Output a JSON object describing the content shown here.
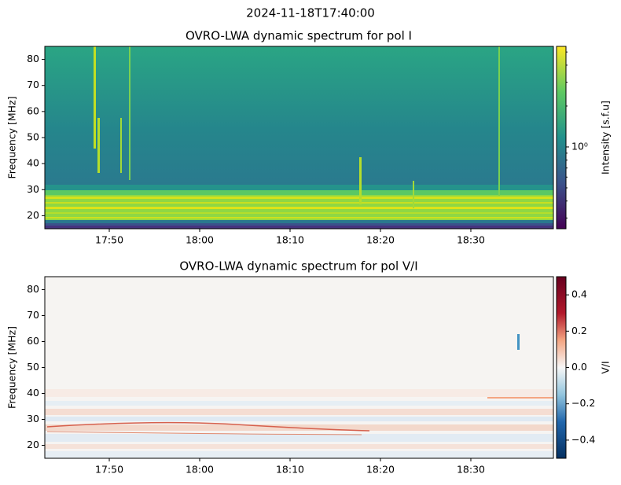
{
  "title": "2024-11-18T17:40:00",
  "chart_data": [
    {
      "type": "heatmap",
      "title": "OVRO-LWA dynamic spectrum for pol I",
      "ylabel": "Frequency [MHz]",
      "xlim": [
        "17:42:52",
        "18:39:08"
      ],
      "xticks": [
        "17:50",
        "18:00",
        "18:10",
        "18:20",
        "18:30"
      ],
      "ylim": [
        15,
        85
      ],
      "yticks": [
        20,
        30,
        40,
        50,
        60,
        70,
        80
      ],
      "colormap": "viridis",
      "cbar_label": "Intensity [s.f.u]",
      "cbar_scale": "log",
      "clim": [
        0.25,
        5.5
      ],
      "cbar_ticks": [
        {
          "value": 1,
          "label": "10⁰"
        }
      ],
      "cbar_minor_ticks": [
        0.3,
        0.4,
        0.5,
        0.6,
        0.7,
        0.8,
        0.9,
        2,
        3,
        4,
        5
      ]
    },
    {
      "type": "heatmap",
      "title": "OVRO-LWA dynamic spectrum for pol V/I",
      "ylabel": "Frequency [MHz]",
      "xlim": [
        "17:42:52",
        "18:39:08"
      ],
      "xticks": [
        "17:50",
        "18:00",
        "18:10",
        "18:20",
        "18:30"
      ],
      "ylim": [
        15,
        85
      ],
      "yticks": [
        20,
        30,
        40,
        50,
        60,
        70,
        80
      ],
      "colormap": "RdBu_r",
      "cbar_label": "V/I",
      "cbar_scale": "linear",
      "clim": [
        -0.5,
        0.5
      ],
      "cbar_ticks": [
        {
          "value": -0.4,
          "label": "−0.4"
        },
        {
          "value": -0.2,
          "label": "−0.2"
        },
        {
          "value": 0,
          "label": "0.0"
        },
        0.2,
        0.4
      ],
      "cbar_minor_ticks": []
    }
  ]
}
